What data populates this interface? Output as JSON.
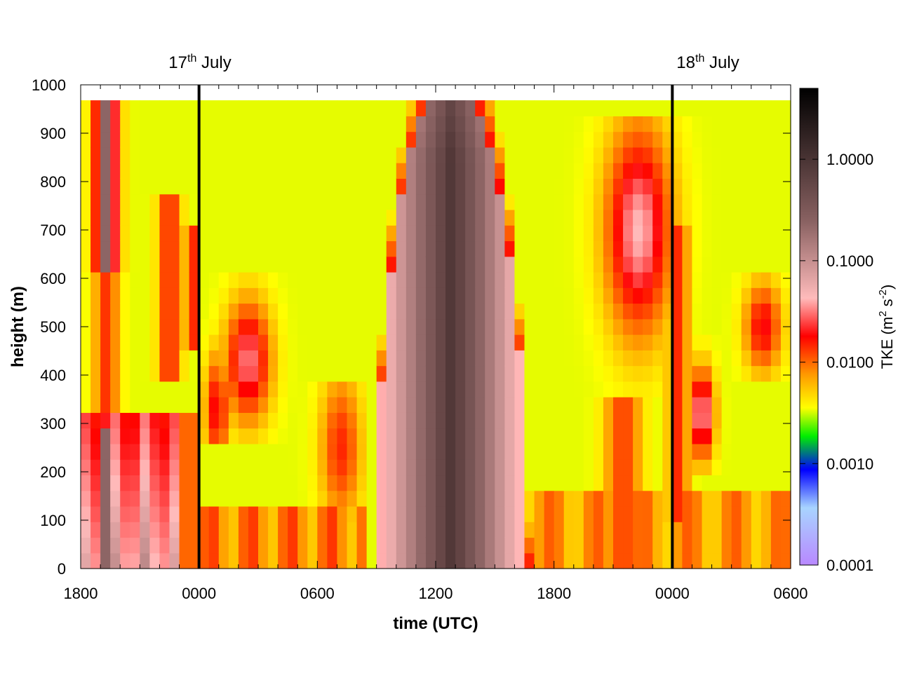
{
  "chart_data": {
    "type": "heatmap",
    "title": "",
    "xlabel": "time (UTC)",
    "ylabel": "height (m)",
    "x_ticks": [
      "1800",
      "0000",
      "0600",
      "1200",
      "1800",
      "0000",
      "0600"
    ],
    "x_range_hours_span": 36,
    "y_ticks": [
      0,
      100,
      200,
      300,
      400,
      500,
      600,
      700,
      800,
      900,
      1000
    ],
    "ylim": [
      0,
      1000
    ],
    "date_markers": [
      {
        "base": "17",
        "sup": "th",
        "rest": " July",
        "at_tick": "0000"
      },
      {
        "base": "18",
        "sup": "th",
        "rest": " July",
        "at_tick": "0000"
      }
    ],
    "colorbar": {
      "label_base": "TKE (m",
      "label_sup1": "2",
      "label_mid": " s",
      "label_sup2": "-2",
      "label_end": ")",
      "scale": "log",
      "range": [
        0.0001,
        5
      ],
      "ticks": [
        "0.0001",
        "0.0010",
        "0.0100",
        "0.1000",
        "1.0000"
      ],
      "colors": [
        "#b888ff",
        "#a8d4ff",
        "#0000ff",
        "#00dd00",
        "#ffff00",
        "#ff9900",
        "#ff0000",
        "#ffbbbb",
        "#8a6262",
        "#000000"
      ]
    },
    "grid": false,
    "cells_top_height": 968
  }
}
